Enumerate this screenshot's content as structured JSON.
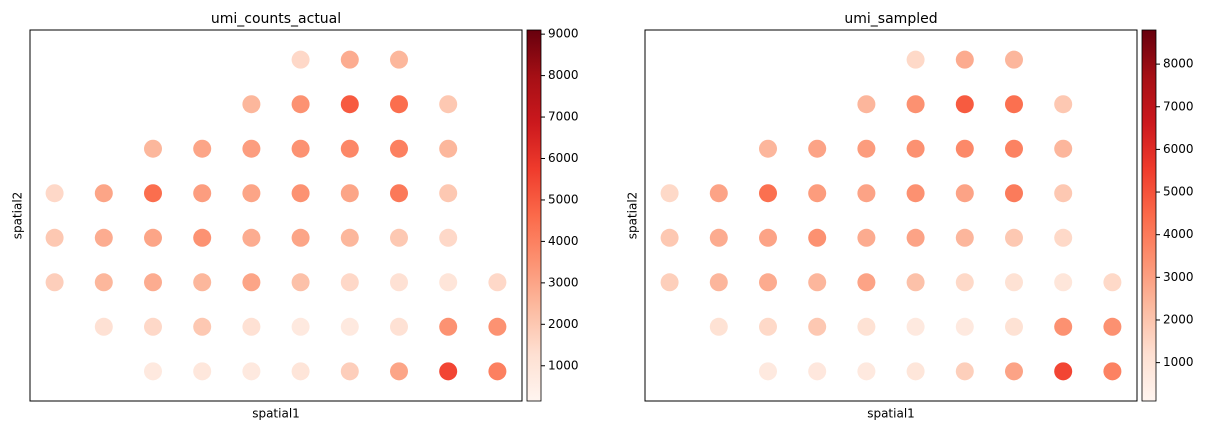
{
  "chart_data": [
    {
      "type": "scatter",
      "title": "umi_counts_actual",
      "xlabel": "spatial1",
      "ylabel": "spatial2",
      "x": [
        55,
        65,
        75,
        45,
        55,
        65,
        75,
        85,
        25,
        35,
        45,
        55,
        65,
        75,
        85,
        5,
        15,
        25,
        35,
        45,
        55,
        65,
        75,
        85,
        5,
        15,
        25,
        35,
        45,
        55,
        65,
        75,
        85,
        5,
        15,
        25,
        35,
        45,
        55,
        65,
        75,
        85,
        95,
        15,
        25,
        35,
        45,
        55,
        65,
        75,
        85,
        95,
        25,
        35,
        45,
        55,
        65,
        75,
        85,
        95
      ],
      "y": [
        92,
        92,
        92,
        80,
        80,
        80,
        80,
        80,
        68,
        68,
        68,
        68,
        68,
        68,
        68,
        56,
        56,
        56,
        56,
        56,
        56,
        56,
        56,
        56,
        44,
        44,
        44,
        44,
        44,
        44,
        44,
        44,
        44,
        32,
        32,
        32,
        32,
        32,
        32,
        32,
        32,
        32,
        32,
        20,
        20,
        20,
        20,
        20,
        20,
        20,
        20,
        20,
        8,
        8,
        8,
        8,
        8,
        8,
        8,
        8
      ],
      "values": [
        1500,
        2800,
        2500,
        2500,
        3500,
        5000,
        4500,
        2000,
        2500,
        3000,
        3200,
        3500,
        3800,
        4000,
        2500,
        1500,
        3000,
        4500,
        3200,
        3000,
        3500,
        3000,
        4200,
        2000,
        2000,
        2800,
        3000,
        3500,
        2800,
        3000,
        2500,
        2000,
        1500,
        1800,
        2500,
        2800,
        2500,
        3000,
        2200,
        1500,
        1200,
        1000,
        1500,
        1200,
        1500,
        2000,
        1200,
        800,
        800,
        1200,
        3500,
        3500,
        800,
        900,
        800,
        1000,
        1800,
        3000,
        5500,
        4000
      ],
      "xlim": [
        0,
        100
      ],
      "ylim": [
        0,
        100
      ],
      "colormap": [
        "#fff5f0",
        "#fee0d2",
        "#fcbba1",
        "#fc9272",
        "#fb6a4a",
        "#ef3b2c",
        "#cb181d",
        "#a50f15",
        "#67000d"
      ],
      "clim": [
        150,
        9100
      ],
      "cticks": [
        1000,
        2000,
        3000,
        4000,
        5000,
        6000,
        7000,
        8000,
        9000
      ]
    },
    {
      "type": "scatter",
      "title": "umi_sampled",
      "xlabel": "spatial1",
      "ylabel": "spatial2",
      "x": [
        55,
        65,
        75,
        45,
        55,
        65,
        75,
        85,
        25,
        35,
        45,
        55,
        65,
        75,
        85,
        5,
        15,
        25,
        35,
        45,
        55,
        65,
        75,
        85,
        5,
        15,
        25,
        35,
        45,
        55,
        65,
        75,
        85,
        5,
        15,
        25,
        35,
        45,
        55,
        65,
        75,
        85,
        95,
        15,
        25,
        35,
        45,
        55,
        65,
        75,
        85,
        95,
        25,
        35,
        45,
        55,
        65,
        75,
        85,
        95
      ],
      "y": [
        92,
        92,
        92,
        80,
        80,
        80,
        80,
        80,
        68,
        68,
        68,
        68,
        68,
        68,
        68,
        56,
        56,
        56,
        56,
        56,
        56,
        56,
        56,
        56,
        44,
        44,
        44,
        44,
        44,
        44,
        44,
        44,
        44,
        32,
        32,
        32,
        32,
        32,
        32,
        32,
        32,
        32,
        32,
        20,
        20,
        20,
        20,
        20,
        20,
        20,
        20,
        20,
        8,
        8,
        8,
        8,
        8,
        8,
        8,
        8
      ],
      "values": [
        1400,
        2700,
        2400,
        2400,
        3400,
        4800,
        4300,
        1900,
        2400,
        2900,
        3100,
        3400,
        3600,
        3800,
        2400,
        1400,
        2900,
        4300,
        3100,
        2900,
        3400,
        2900,
        4000,
        1900,
        1900,
        2700,
        2900,
        3400,
        2700,
        2900,
        2400,
        1900,
        1400,
        1700,
        2400,
        2700,
        2400,
        2900,
        2100,
        1400,
        1100,
        900,
        1400,
        1100,
        1400,
        1900,
        1100,
        700,
        700,
        1100,
        3400,
        3400,
        700,
        800,
        700,
        900,
        1700,
        2900,
        5300,
        3800
      ],
      "xlim": [
        0,
        100
      ],
      "ylim": [
        0,
        100
      ],
      "colormap": [
        "#fff5f0",
        "#fee0d2",
        "#fcbba1",
        "#fc9272",
        "#fb6a4a",
        "#ef3b2c",
        "#cb181d",
        "#a50f15",
        "#67000d"
      ],
      "clim": [
        100,
        8800
      ],
      "cticks": [
        1000,
        2000,
        3000,
        4000,
        5000,
        6000,
        7000,
        8000
      ]
    }
  ]
}
